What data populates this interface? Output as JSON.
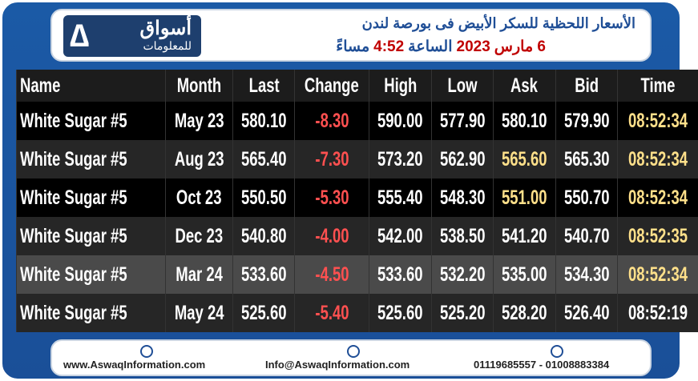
{
  "header": {
    "logo": {
      "name": "أسواق",
      "tagline": "للمعلومات"
    },
    "title": "الأسعار اللحظية للسكر الأبيض فى بورصة لندن",
    "subtitle": [
      "6 مارس",
      "2023",
      "الساعة",
      "4:52",
      "مساءً"
    ]
  },
  "table": {
    "columns": [
      "Name",
      "Month",
      "Last",
      "Change",
      "High",
      "Low",
      "Ask",
      "Bid",
      "Time"
    ],
    "rows": [
      [
        "White Sugar #5",
        "May 23",
        "580.10",
        "-8.30",
        "590.00",
        "577.90",
        "580.10",
        "579.90",
        "08:52:34"
      ],
      [
        "White Sugar #5",
        "Aug 23",
        "565.40",
        "-7.30",
        "573.20",
        "562.90",
        "565.60",
        "565.30",
        "08:52:34"
      ],
      [
        "White Sugar #5",
        "Oct 23",
        "550.50",
        "-5.30",
        "555.40",
        "548.30",
        "551.00",
        "550.70",
        "08:52:34"
      ],
      [
        "White Sugar #5",
        "Dec 23",
        "540.80",
        "-4.00",
        "542.00",
        "538.50",
        "541.20",
        "540.70",
        "08:52:35"
      ],
      [
        "White Sugar #5",
        "Mar 24",
        "533.60",
        "-4.50",
        "533.60",
        "532.20",
        "535.00",
        "534.30",
        "08:52:34"
      ],
      [
        "White Sugar #5",
        "May 24",
        "525.60",
        "-5.40",
        "525.60",
        "525.20",
        "528.20",
        "526.40",
        "08:52:19"
      ]
    ]
  },
  "footer": {
    "website": "www.AswaqInformation.com",
    "email": "Info@AswaqInformation.com",
    "phones": "01119685557 - 01008883384"
  }
}
